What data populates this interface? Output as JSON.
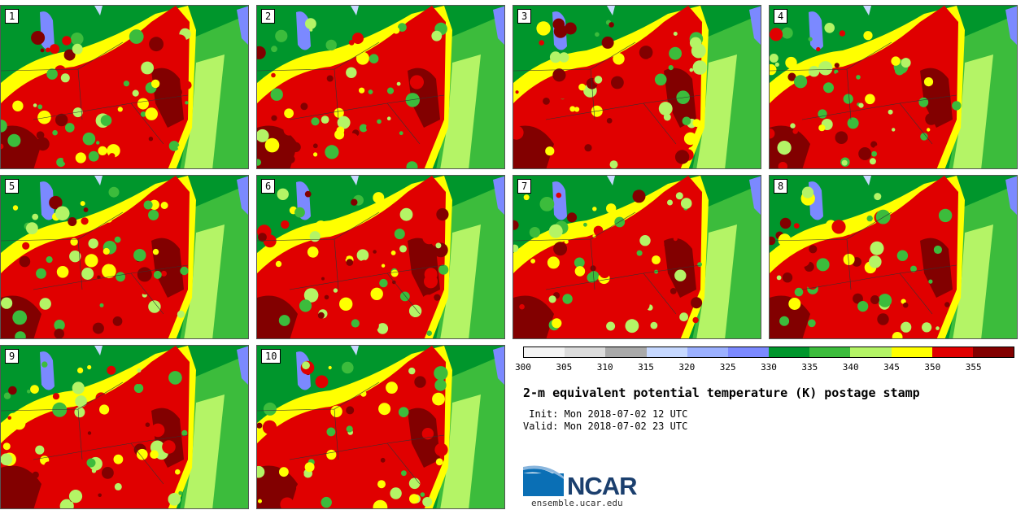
{
  "panels": [
    {
      "label": "1"
    },
    {
      "label": "2"
    },
    {
      "label": "3"
    },
    {
      "label": "4"
    },
    {
      "label": "5"
    },
    {
      "label": "6"
    },
    {
      "label": "7"
    },
    {
      "label": "8"
    },
    {
      "label": "9"
    },
    {
      "label": "10"
    }
  ],
  "colorbar": {
    "colors": [
      "#f4f4f4",
      "#dcdcdc",
      "#a9a9a9",
      "#c6d8ff",
      "#9bb0ff",
      "#7b89ff",
      "#00962c",
      "#3cbc3c",
      "#b4f466",
      "#ffff00",
      "#e00000",
      "#820000"
    ],
    "ticks": [
      "300",
      "305",
      "310",
      "315",
      "320",
      "325",
      "330",
      "335",
      "340",
      "345",
      "350",
      "355"
    ]
  },
  "title": "2-m equivalent potential temperature (K) postage stamp",
  "init": " Init: Mon 2018-07-02 12 UTC",
  "valid": "Valid: Mon 2018-07-02 23 UTC",
  "logo_text": "NCAR",
  "site": "ensemble.ucar.edu"
}
